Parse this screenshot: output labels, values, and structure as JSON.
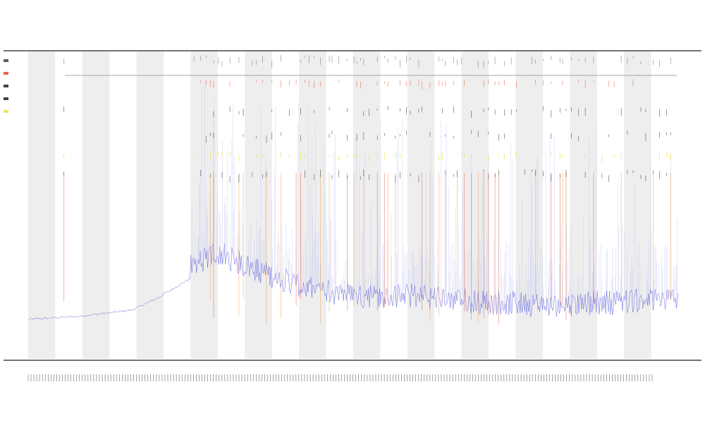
{
  "chart_data": {
    "type": "line",
    "title": "",
    "subtitle_1": "",
    "subtitle_2": "",
    "xlabel": "",
    "ylabel": "",
    "x_tick_labels": [],
    "grid": false,
    "alternating_column_bands": 12,
    "legend_placement": "left",
    "colors": {
      "signal_line": "#3b3fd6",
      "signal_fill": "#b9bdf2",
      "spike_red": "#e0401f",
      "spike_orange": "#f08a2a",
      "marker_black": "#111111",
      "marker_yellow": "#e8e23a",
      "band_gray": "#eeeeee",
      "axis": "#222222"
    },
    "event_rows": [
      {
        "name": "",
        "color": "#333333"
      },
      {
        "name": "",
        "color": "#e0401f"
      },
      {
        "name": "",
        "color": "#111111"
      },
      {
        "name": "",
        "color": "#111111"
      },
      {
        "name": "",
        "color": "#e8e23a"
      }
    ],
    "series": [
      {
        "name": "",
        "color": "#3b3fd6",
        "baseline_profile": [
          {
            "x": 0.0,
            "y": 0.06
          },
          {
            "x": 0.08,
            "y": 0.07
          },
          {
            "x": 0.16,
            "y": 0.09
          },
          {
            "x": 0.2,
            "y": 0.13
          },
          {
            "x": 0.24,
            "y": 0.18
          },
          {
            "x": 0.29,
            "y": 0.24
          },
          {
            "x": 0.33,
            "y": 0.2
          },
          {
            "x": 0.38,
            "y": 0.16
          },
          {
            "x": 0.44,
            "y": 0.12
          },
          {
            "x": 0.5,
            "y": 0.1
          },
          {
            "x": 0.6,
            "y": 0.1
          },
          {
            "x": 0.7,
            "y": 0.08
          },
          {
            "x": 0.8,
            "y": 0.07
          },
          {
            "x": 0.9,
            "y": 0.08
          },
          {
            "x": 1.0,
            "y": 0.09
          }
        ]
      }
    ]
  }
}
